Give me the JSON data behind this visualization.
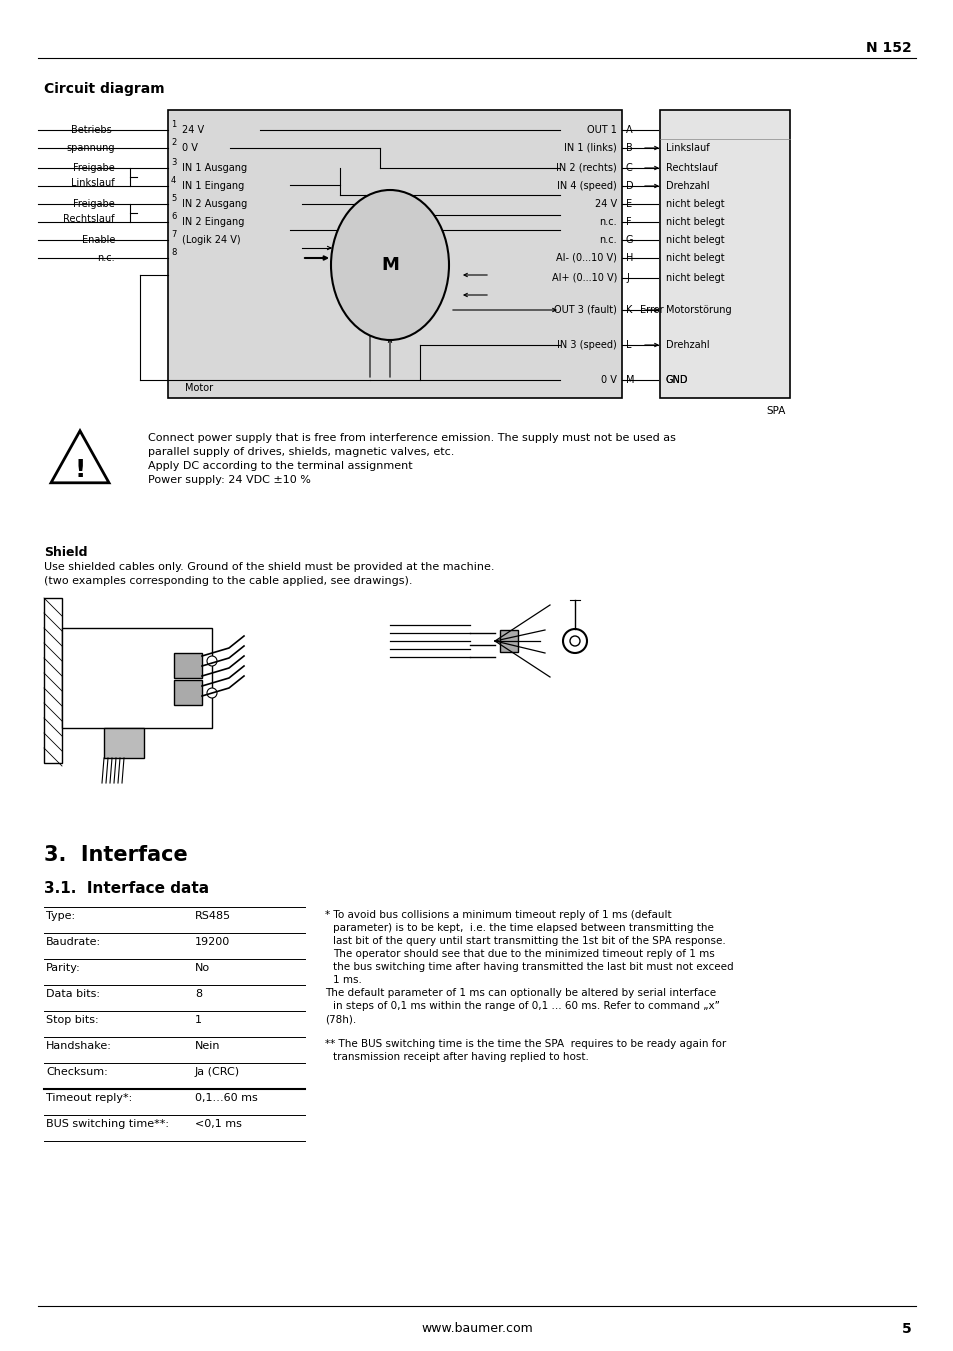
{
  "page_number": "5",
  "header_text": "N 152",
  "bg_color": "#ffffff",
  "title_circuit": "Circuit diagram",
  "warning_text_lines": [
    "Connect power supply that is free from interference emission. The supply must not be used as",
    "parallel supply of drives, shields, magnetic valves, etc.",
    "Apply DC according to the terminal assignment",
    "Power supply: 24 VDC ±10 %"
  ],
  "shield_title": "Shield",
  "shield_text_lines": [
    "Use shielded cables only. Ground of the shield must be provided at the machine.",
    "(two examples corresponding to the cable applied, see drawings)."
  ],
  "section_title": "3.  Interface",
  "subsection_title": "3.1.  Interface data",
  "table_rows": [
    [
      "Type:",
      "RS485"
    ],
    [
      "Baudrate:",
      "19200"
    ],
    [
      "Parity:",
      "No"
    ],
    [
      "Data bits:",
      "8"
    ],
    [
      "Stop bits:",
      "1"
    ],
    [
      "Handshake:",
      "Nein"
    ],
    [
      "Checksum:",
      "Ja (CRC)"
    ],
    [
      "Timeout reply*:",
      "0,1…60 ms"
    ],
    [
      "BUS switching time**:",
      "<0,1 ms"
    ]
  ],
  "footnote1_lines": [
    "* To avoid bus collisions a minimum timeout reply of 1 ms (default",
    "parameter) is to be kept,  i.e. the time elapsed between transmitting the",
    "last bit of the query until start transmitting the 1st bit of the SPA response.",
    "The operator should see that due to the minimized timeout reply of 1 ms",
    "the bus switching time after having transmitted the last bit must not exceed",
    "1 ms.",
    "The default parameter of 1 ms can optionally be altered by serial interface",
    "in steps of 0,1 ms within the range of 0,1 ... 60 ms. Refer to command „x”",
    "(78h)."
  ],
  "footnote2_lines": [
    "** The BUS switching time is the time the SPA  requires to be ready again for",
    "transmission receipt after having replied to host."
  ],
  "footer_url": "www.baumer.com",
  "circuit_right_signals": [
    "OUT 1",
    "IN 1 (links)",
    "IN 2 (rechts)",
    "IN 4 (speed)",
    "24 V",
    "n.c.",
    "n.c.",
    "AI- (0...10 V)",
    "AI+ (0...10 V)",
    "OUT 3 (fault)",
    "IN 3 (speed)",
    "0 V"
  ],
  "circuit_right_letters": [
    "A",
    "B",
    "C",
    "D",
    "E",
    "F",
    "G",
    "H",
    "J",
    "K",
    "L",
    "M"
  ],
  "circuit_spa_labels": [
    "Linkslauf",
    "Rechtslauf",
    "Drehzahl",
    "nicht belegt",
    "nicht belegt",
    "nicht belegt",
    "nicht belegt",
    "nicht belegt",
    "Motorstörung",
    "Drehzahl",
    "GND"
  ],
  "circuit_box_color": "#d8d8d8",
  "spa_box_color": "#e4e4e4"
}
